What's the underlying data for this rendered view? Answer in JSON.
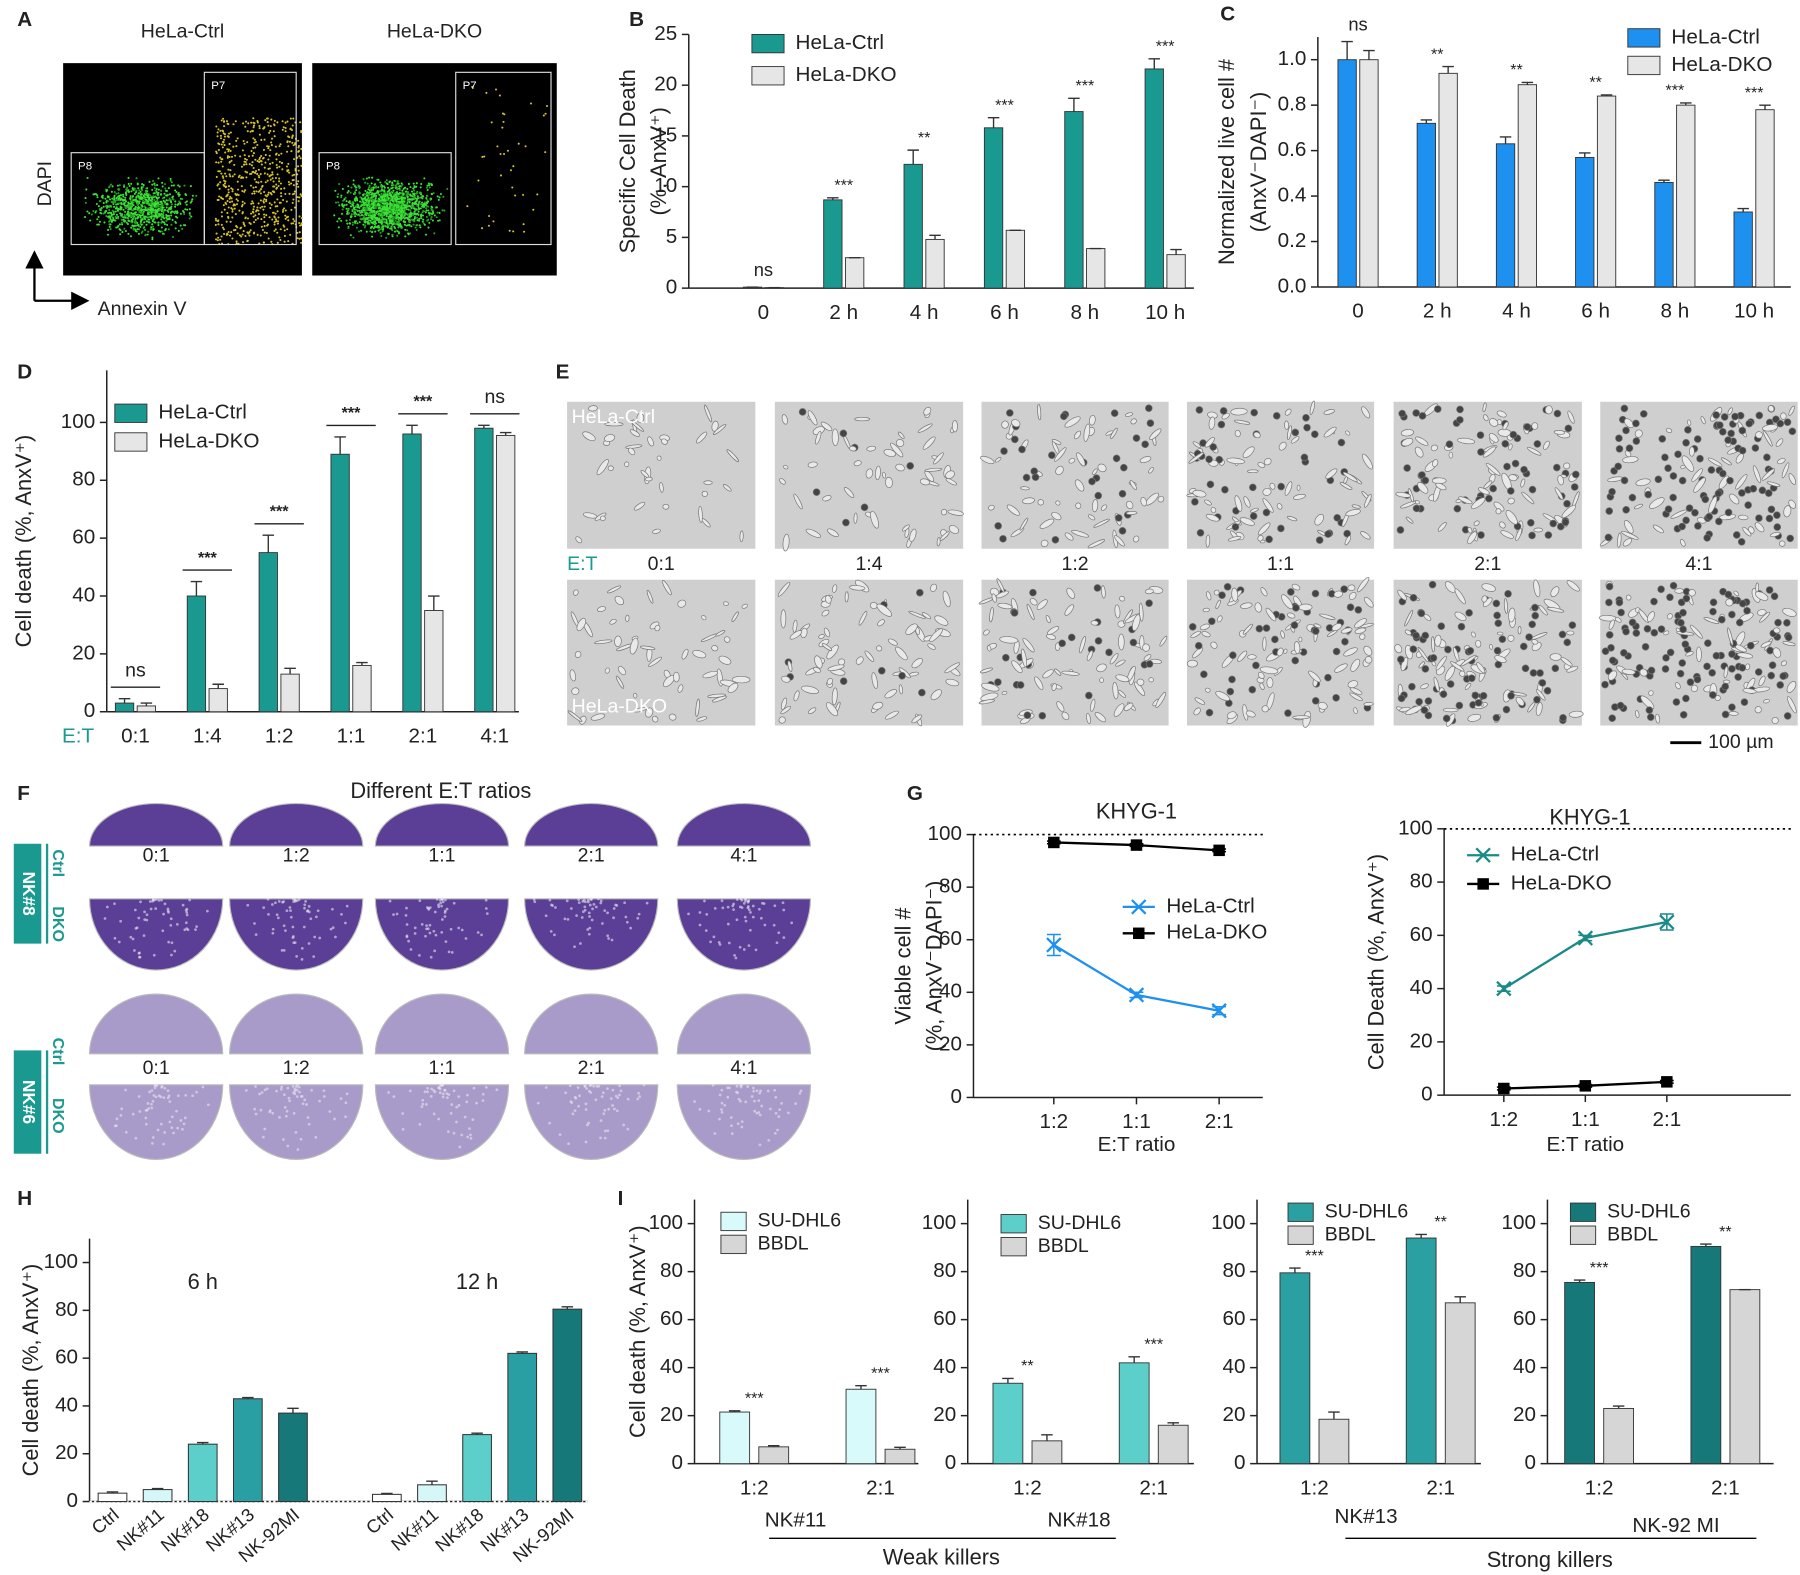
{
  "panel_labels": [
    "A",
    "B",
    "C",
    "D",
    "E",
    "F",
    "G",
    "H",
    "I"
  ],
  "panel_a": {
    "titles": [
      "HeLa-Ctrl",
      "HeLa-DKO"
    ],
    "gates": [
      "P8",
      "P7"
    ],
    "y_axis": "DAPI",
    "x_axis": "Annexin V"
  },
  "panel_e": {
    "rows": [
      "HeLa-Ctrl",
      "HeLa-DKO"
    ],
    "ratio_label": "E:T",
    "ratios": [
      "0:1",
      "1:4",
      "1:2",
      "1:1",
      "2:1",
      "4:1"
    ],
    "scale_bar": "100 µm"
  },
  "panel_f": {
    "title": "Different E:T ratios",
    "donors": [
      {
        "name": "NK#8",
        "rows": [
          "Ctrl",
          "DKO"
        ],
        "ratios": [
          "0:1",
          "1:2",
          "1:1",
          "2:1",
          "4:1"
        ]
      },
      {
        "name": "NK#6",
        "rows": [
          "Ctrl",
          "DKO"
        ],
        "ratios": [
          "0:1",
          "1:2",
          "1:1",
          "2:1",
          "4:1"
        ]
      }
    ]
  },
  "panel_i": {
    "ylabel": "Cell death (%, AnxV⁺)",
    "groups": [
      "Weak killers",
      "Strong killers"
    ]
  },
  "chart_data": [
    {
      "type": "bar",
      "ylabel": [
        "Specific Cell Death",
        "(%, AnxV⁺)"
      ],
      "categories": [
        "0",
        "2 h",
        "4 h",
        "6 h",
        "8 h",
        "10 h"
      ],
      "series": [
        {
          "name": "HeLa-Ctrl",
          "color": "#1a9990",
          "values": [
            0.1,
            8.7,
            12.2,
            15.8,
            17.4,
            21.6
          ],
          "errors": [
            0,
            0.2,
            1.4,
            1.0,
            1.3,
            1.0
          ]
        },
        {
          "name": "HeLa-DKO",
          "color": "#e6e6e6",
          "values": [
            0.05,
            3.0,
            4.8,
            5.7,
            3.9,
            3.3
          ],
          "errors": [
            0,
            0,
            0.4,
            0,
            0,
            0.5
          ]
        }
      ],
      "annotations": [
        "ns",
        "***",
        "**",
        "***",
        "***",
        "***"
      ],
      "ylim": [
        0,
        25
      ],
      "yticks": [
        0,
        5,
        10,
        15,
        20,
        25
      ]
    },
    {
      "type": "bar",
      "ylabel": [
        "Normalized live cell #",
        "(AnxV⁻DAPI⁻)"
      ],
      "categories": [
        "0",
        "2 h",
        "4 h",
        "6 h",
        "8 h",
        "10 h"
      ],
      "series": [
        {
          "name": "HeLa-Ctrl",
          "color": "#1e90f0",
          "values": [
            1.0,
            0.72,
            0.63,
            0.57,
            0.46,
            0.33
          ],
          "errors": [
            0.08,
            0.015,
            0.03,
            0.02,
            0.01,
            0.015
          ]
        },
        {
          "name": "HeLa-DKO",
          "color": "#e6e6e6",
          "values": [
            1.0,
            0.94,
            0.89,
            0.84,
            0.8,
            0.78
          ],
          "errors": [
            0.04,
            0.03,
            0.01,
            0.005,
            0.01,
            0.02
          ]
        }
      ],
      "annotations": [
        "ns",
        "**",
        "**",
        "**",
        "***",
        "***"
      ],
      "ylim": [
        0,
        1.1
      ],
      "yticks": [
        {
          "value": 0,
          "label": "0.0"
        },
        {
          "value": 0.2,
          "label": "0.2"
        },
        {
          "value": 0.4,
          "label": "0.4"
        },
        {
          "value": 0.6,
          "label": "0.6"
        },
        {
          "value": 0.8,
          "label": "0.8"
        },
        {
          "value": 1,
          "label": "1.0"
        }
      ]
    },
    {
      "type": "bar",
      "ylabel": [
        "Cell death (%, AnxV⁺)"
      ],
      "category_label": "E:T",
      "categories": [
        "0:1",
        "1:4",
        "1:2",
        "1:1",
        "2:1",
        "4:1"
      ],
      "series": [
        {
          "name": "HeLa-Ctrl",
          "color": "#1a9990",
          "values": [
            3,
            40,
            55,
            89,
            96,
            98
          ],
          "errors": [
            1.5,
            5,
            6,
            6,
            3,
            1
          ]
        },
        {
          "name": "HeLa-DKO",
          "color": "#e6e6e6",
          "values": [
            2,
            8,
            13,
            16,
            35,
            95.5
          ],
          "errors": [
            1,
            1.5,
            2,
            1,
            5,
            1
          ]
        }
      ],
      "annotations": [
        "ns",
        "***",
        "***",
        "***",
        "***",
        "ns"
      ],
      "bracket": true,
      "ylim": [
        0,
        118
      ],
      "yticks": [
        0,
        20,
        40,
        60,
        80,
        100
      ]
    },
    {
      "type": "line",
      "title": "KHYG-1",
      "ylabel": [
        "Viable cell #",
        "(%, AnxV⁻DAPI⁻)"
      ],
      "xlabel": "E:T ratio",
      "categories": [
        "1:2",
        "1:1",
        "2:1"
      ],
      "series": [
        {
          "name": "HeLa-Ctrl",
          "color": "#1e90f0",
          "marker": "x",
          "values": [
            58,
            39,
            33
          ],
          "errors": [
            4,
            1,
            1.5
          ]
        },
        {
          "name": "HeLa-DKO",
          "color": "#000000",
          "marker": "square",
          "values": [
            97,
            96,
            94
          ],
          "errors": [
            0.5,
            0.5,
            0.5
          ]
        }
      ],
      "reference_line": 100,
      "ylim": [
        0,
        100
      ],
      "yticks": [
        0,
        20,
        40,
        60,
        80,
        100
      ]
    },
    {
      "type": "line",
      "title": "KHYG-1",
      "ylabel": [
        "Cell Death (%, AnxV⁺)"
      ],
      "xlabel": "E:T ratio",
      "categories": [
        "1:2",
        "1:1",
        "2:1"
      ],
      "series": [
        {
          "name": "HeLa-Ctrl",
          "color": "#1a8a88",
          "marker": "x",
          "values": [
            40,
            59,
            65
          ],
          "errors": [
            1,
            1,
            3
          ]
        },
        {
          "name": "HeLa-DKO",
          "color": "#000000",
          "marker": "square",
          "values": [
            2.5,
            3.5,
            5
          ],
          "errors": [
            0.5,
            0.5,
            0.5
          ]
        }
      ],
      "reference_line": 100,
      "ylim": [
        0,
        100
      ],
      "yticks": [
        0,
        20,
        40,
        60,
        80,
        100
      ]
    },
    {
      "type": "grouped-bar",
      "ylabel": [
        "Cell death (%, AnxV⁺)"
      ],
      "groups": [
        {
          "label": "6 h",
          "categories": [
            "Ctrl",
            "NK#11",
            "NK#18",
            "NK#13",
            "NK-92MI"
          ],
          "values": [
            3.5,
            5,
            24,
            43,
            37
          ],
          "errors": [
            0.5,
            0.4,
            0.7,
            0.5,
            2
          ]
        },
        {
          "label": "12 h",
          "categories": [
            "Ctrl",
            "NK#11",
            "NK#18",
            "NK#13",
            "NK-92MI"
          ],
          "values": [
            3,
            7,
            28,
            62,
            80.5
          ],
          "errors": [
            0.4,
            1.5,
            0.6,
            0.6,
            1
          ]
        }
      ],
      "colors": [
        "#ffffff",
        "#d6f7f7",
        "#5ccfcb",
        "#2a9fa3",
        "#167878"
      ],
      "ylim": [
        0,
        110
      ],
      "yticks": [
        0,
        20,
        40,
        60,
        80,
        100
      ]
    },
    {
      "type": "bar",
      "xlabel": "NK#11",
      "categories": [
        "1:2",
        "2:1"
      ],
      "series": [
        {
          "name": "SU-DHL6",
          "color": "#d8fafa",
          "values": [
            21.5,
            31
          ],
          "errors": [
            0.5,
            1.5
          ]
        },
        {
          "name": "BBDL",
          "color": "#d6d6d6",
          "values": [
            7,
            6
          ],
          "errors": [
            0.5,
            0.8
          ]
        }
      ],
      "annotations": [
        "***",
        "***"
      ],
      "ylim": [
        0,
        110
      ],
      "yticks": [
        0,
        20,
        40,
        60,
        80,
        100
      ]
    },
    {
      "type": "bar",
      "xlabel": "NK#18",
      "categories": [
        "1:2",
        "2:1"
      ],
      "series": [
        {
          "name": "SU-DHL6",
          "color": "#5ccfcb",
          "values": [
            33.5,
            42
          ],
          "errors": [
            2,
            2.5
          ]
        },
        {
          "name": "BBDL",
          "color": "#d6d6d6",
          "values": [
            9.5,
            16
          ],
          "errors": [
            2.5,
            1
          ]
        }
      ],
      "annotations": [
        "**",
        "***"
      ],
      "ylim": [
        0,
        110
      ],
      "yticks": [
        0,
        20,
        40,
        60,
        80,
        100
      ]
    },
    {
      "type": "bar",
      "xlabel": "NK#13",
      "categories": [
        "1:2",
        "2:1"
      ],
      "series": [
        {
          "name": "SU-DHL6",
          "color": "#2aa0a2",
          "values": [
            79.5,
            94
          ],
          "errors": [
            2,
            1.5
          ]
        },
        {
          "name": "BBDL",
          "color": "#d6d6d6",
          "values": [
            18.5,
            67
          ],
          "errors": [
            3,
            2.5
          ]
        }
      ],
      "annotations": [
        "***",
        "**"
      ],
      "ylim": [
        0,
        110
      ],
      "yticks": [
        0,
        20,
        40,
        60,
        80,
        100
      ]
    },
    {
      "type": "bar",
      "xlabel": "NK-92 MI",
      "categories": [
        "1:2",
        "2:1"
      ],
      "series": [
        {
          "name": "SU-DHL6",
          "color": "#167878",
          "values": [
            75.5,
            90.5
          ],
          "errors": [
            1,
            1
          ]
        },
        {
          "name": "BBDL",
          "color": "#d6d6d6",
          "values": [
            23,
            72.5
          ],
          "errors": [
            1,
            0
          ]
        }
      ],
      "annotations": [
        "***",
        "**"
      ],
      "ylim": [
        0,
        110
      ],
      "yticks": [
        0,
        20,
        40,
        60,
        80,
        100
      ]
    }
  ]
}
